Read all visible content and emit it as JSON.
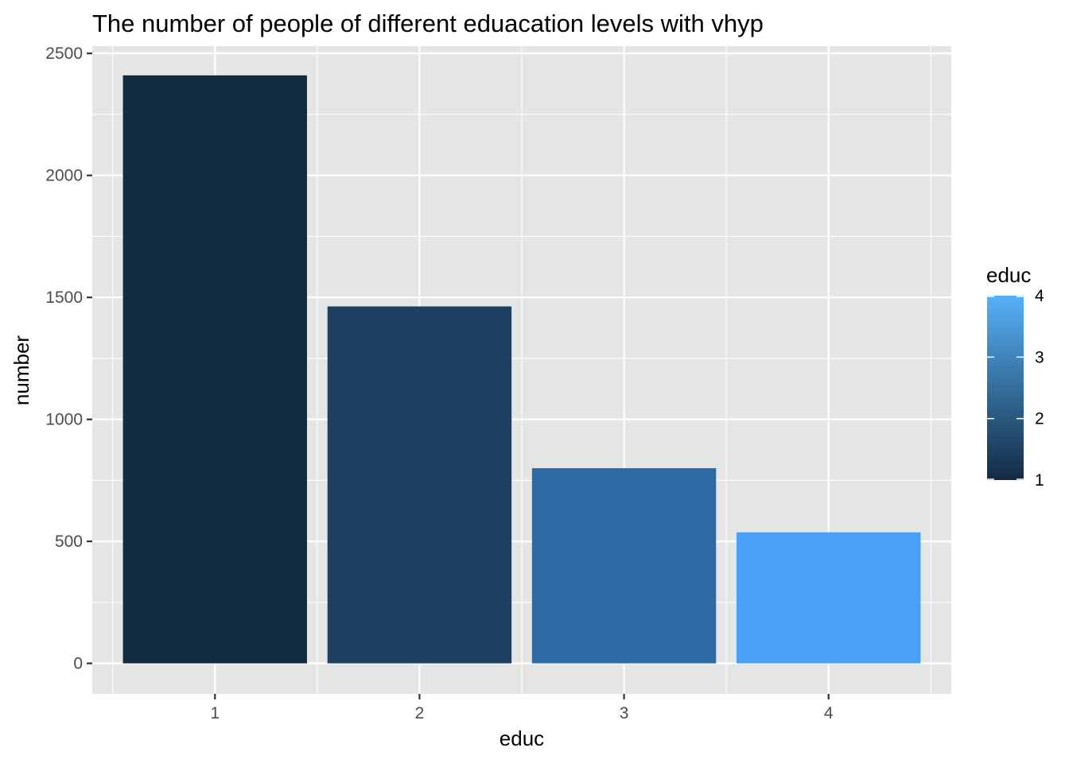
{
  "chart_data": {
    "type": "bar",
    "title": "The number of people of different eduacation levels with vhyp",
    "xlabel": "educ",
    "ylabel": "number",
    "categories": [
      "1",
      "2",
      "3",
      "4"
    ],
    "values": [
      2410,
      1463,
      800,
      537
    ],
    "ylim": [
      -125,
      2530
    ],
    "yticks": [
      0,
      500,
      1000,
      1500,
      2000,
      2500
    ],
    "ytick_labels": [
      "0",
      "500",
      "1000",
      "1500",
      "2000",
      "2500"
    ],
    "grid": true,
    "legend": {
      "title": "educ",
      "position": "right",
      "type": "colorbar",
      "range": [
        1,
        4
      ],
      "ticks": [
        "1",
        "2",
        "3",
        "4"
      ],
      "low_color": "#132B43",
      "high_color": "#56B1F7"
    },
    "colors": {
      "panel_background": "#E5E5E5",
      "grid_major": "#FFFFFF",
      "bars": [
        "#132B43",
        "#1F4063",
        "#2D6AA8",
        "#48A0F7"
      ]
    }
  }
}
